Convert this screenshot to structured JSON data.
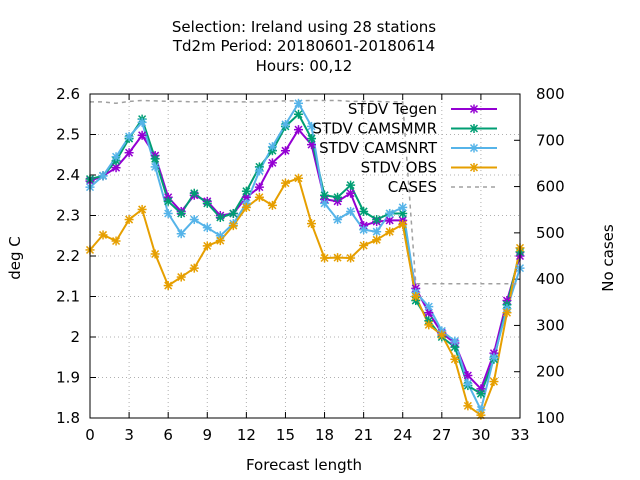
{
  "chart_data": {
    "type": "line",
    "title_lines": [
      "Selection: Ireland using    28 stations",
      "Td2m   Period: 20180601-20180614",
      "Hours:  00,12"
    ],
    "xlabel": "Forecast length",
    "ylabel": "deg C",
    "y2label": "No cases",
    "xlim": [
      0,
      33
    ],
    "ylim": [
      1.8,
      2.6
    ],
    "y2lim": [
      100,
      800
    ],
    "xticks": [
      0,
      3,
      6,
      9,
      12,
      15,
      18,
      21,
      24,
      27,
      30,
      33
    ],
    "yticks": [
      1.8,
      1.9,
      2,
      2.1,
      2.2,
      2.3,
      2.4,
      2.5,
      2.6
    ],
    "y2ticks": [
      100,
      200,
      300,
      400,
      500,
      600,
      700,
      800
    ],
    "grid": true,
    "legend_position": "top-right",
    "x": [
      0,
      1,
      2,
      3,
      4,
      5,
      6,
      7,
      8,
      9,
      10,
      11,
      12,
      13,
      14,
      15,
      16,
      17,
      18,
      19,
      20,
      21,
      22,
      23,
      24,
      25,
      26,
      27,
      28,
      29,
      30,
      31,
      32,
      33
    ],
    "series": [
      {
        "name": "STDV Tegen",
        "color": "#9400d3",
        "axis": "y",
        "marker": "x",
        "values": [
          2.385,
          2.398,
          2.418,
          2.455,
          2.498,
          2.448,
          2.345,
          2.31,
          2.35,
          2.335,
          2.3,
          2.305,
          2.345,
          2.37,
          2.43,
          2.46,
          2.512,
          2.475,
          2.34,
          2.335,
          2.355,
          2.275,
          2.285,
          2.288,
          2.288,
          2.12,
          2.06,
          2.01,
          1.985,
          1.905,
          1.872,
          1.96,
          2.09,
          2.2
        ]
      },
      {
        "name": "STDV CAMSMMR",
        "color": "#009e73",
        "axis": "y",
        "marker": "x",
        "values": [
          2.39,
          2.398,
          2.435,
          2.49,
          2.538,
          2.44,
          2.335,
          2.305,
          2.355,
          2.33,
          2.295,
          2.305,
          2.36,
          2.42,
          2.46,
          2.52,
          2.55,
          2.49,
          2.35,
          2.345,
          2.375,
          2.31,
          2.29,
          2.305,
          2.305,
          2.09,
          2.04,
          2.0,
          1.975,
          1.88,
          1.86,
          1.945,
          2.08,
          2.21
        ]
      },
      {
        "name": "STDV CAMSNRT",
        "color": "#56b4e9",
        "axis": "y",
        "marker": "x",
        "values": [
          2.37,
          2.398,
          2.445,
          2.495,
          2.53,
          2.42,
          2.305,
          2.255,
          2.29,
          2.27,
          2.25,
          2.28,
          2.33,
          2.41,
          2.47,
          2.525,
          2.577,
          2.52,
          2.33,
          2.29,
          2.31,
          2.265,
          2.26,
          2.305,
          2.32,
          2.11,
          2.075,
          2.015,
          1.99,
          1.885,
          1.82,
          1.95,
          2.07,
          2.17
        ]
      },
      {
        "name": "STDV OBS",
        "color": "#e69f00",
        "axis": "y",
        "marker": "x",
        "values": [
          2.215,
          2.252,
          2.237,
          2.29,
          2.315,
          2.205,
          2.127,
          2.148,
          2.17,
          2.225,
          2.238,
          2.275,
          2.32,
          2.345,
          2.325,
          2.38,
          2.392,
          2.28,
          2.195,
          2.196,
          2.195,
          2.226,
          2.24,
          2.26,
          2.278,
          2.1,
          2.03,
          2.005,
          1.945,
          1.83,
          1.807,
          1.89,
          2.06,
          2.22
        ]
      },
      {
        "name": "CASES",
        "color": "#a0a0a0",
        "axis": "y2",
        "dashed": true,
        "values": [
          783,
          783,
          780,
          784,
          786,
          785,
          784,
          784,
          783,
          784,
          784,
          783,
          783,
          783,
          784,
          785,
          785,
          786,
          786,
          786,
          784,
          784,
          784,
          783,
          783,
          390,
          390,
          390,
          390,
          390,
          390,
          390,
          390,
          390
        ]
      }
    ]
  }
}
